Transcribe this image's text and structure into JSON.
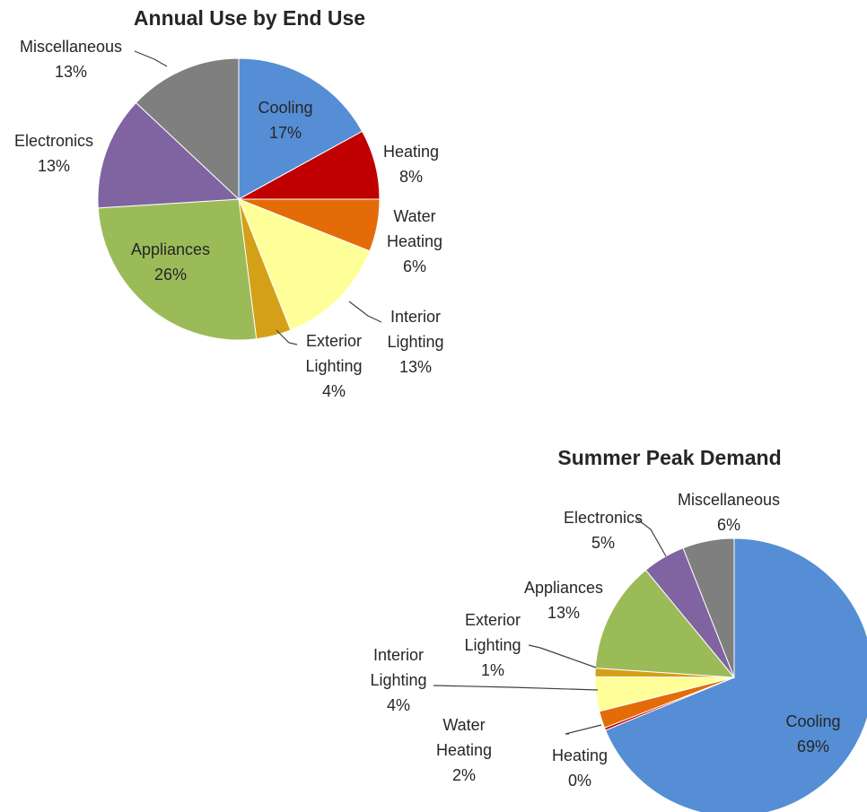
{
  "chart_data": [
    {
      "type": "pie",
      "title": "Annual Use by End Use",
      "slices": [
        {
          "label": [
            "Cooling"
          ],
          "value": 17,
          "pct_text": "17%",
          "color": "#558ED5"
        },
        {
          "label": [
            "Heating"
          ],
          "value": 8,
          "pct_text": "8%",
          "color": "#C00000"
        },
        {
          "label": [
            "Water",
            "Heating"
          ],
          "value": 6,
          "pct_text": "6%",
          "color": "#E36C09"
        },
        {
          "label": [
            "Interior",
            "Lighting"
          ],
          "value": 13,
          "pct_text": "13%",
          "color": "#FFFF99"
        },
        {
          "label": [
            "Exterior",
            "Lighting"
          ],
          "value": 4,
          "pct_text": "4%",
          "color": "#D4A017"
        },
        {
          "label": [
            "Appliances"
          ],
          "value": 26,
          "pct_text": "26%",
          "color": "#9BBB59"
        },
        {
          "label": [
            "Electronics"
          ],
          "value": 13,
          "pct_text": "13%",
          "color": "#8064A2"
        },
        {
          "label": [
            "Miscellaneous"
          ],
          "value": 13,
          "pct_text": "13%",
          "color": "#7F7F7F"
        }
      ]
    },
    {
      "type": "pie",
      "title": "Summer Peak Demand",
      "slices": [
        {
          "label": [
            "Cooling"
          ],
          "value": 69,
          "pct_text": "69%",
          "color": "#558ED5"
        },
        {
          "label": [
            "Heating"
          ],
          "value": 0.3,
          "pct_text": "0%",
          "color": "#C00000"
        },
        {
          "label": [
            "Water",
            "Heating"
          ],
          "value": 2,
          "pct_text": "2%",
          "color": "#E36C09"
        },
        {
          "label": [
            "Interior",
            "Lighting"
          ],
          "value": 4,
          "pct_text": "4%",
          "color": "#FFFF99"
        },
        {
          "label": [
            "Exterior",
            "Lighting"
          ],
          "value": 1,
          "pct_text": "1%",
          "color": "#D4A017"
        },
        {
          "label": [
            "Appliances"
          ],
          "value": 13,
          "pct_text": "13%",
          "color": "#9BBB59"
        },
        {
          "label": [
            "Electronics"
          ],
          "value": 5,
          "pct_text": "5%",
          "color": "#8064A2"
        },
        {
          "label": [
            "Miscellaneous"
          ],
          "value": 6,
          "pct_text": "6%",
          "color": "#7F7F7F"
        }
      ]
    }
  ]
}
